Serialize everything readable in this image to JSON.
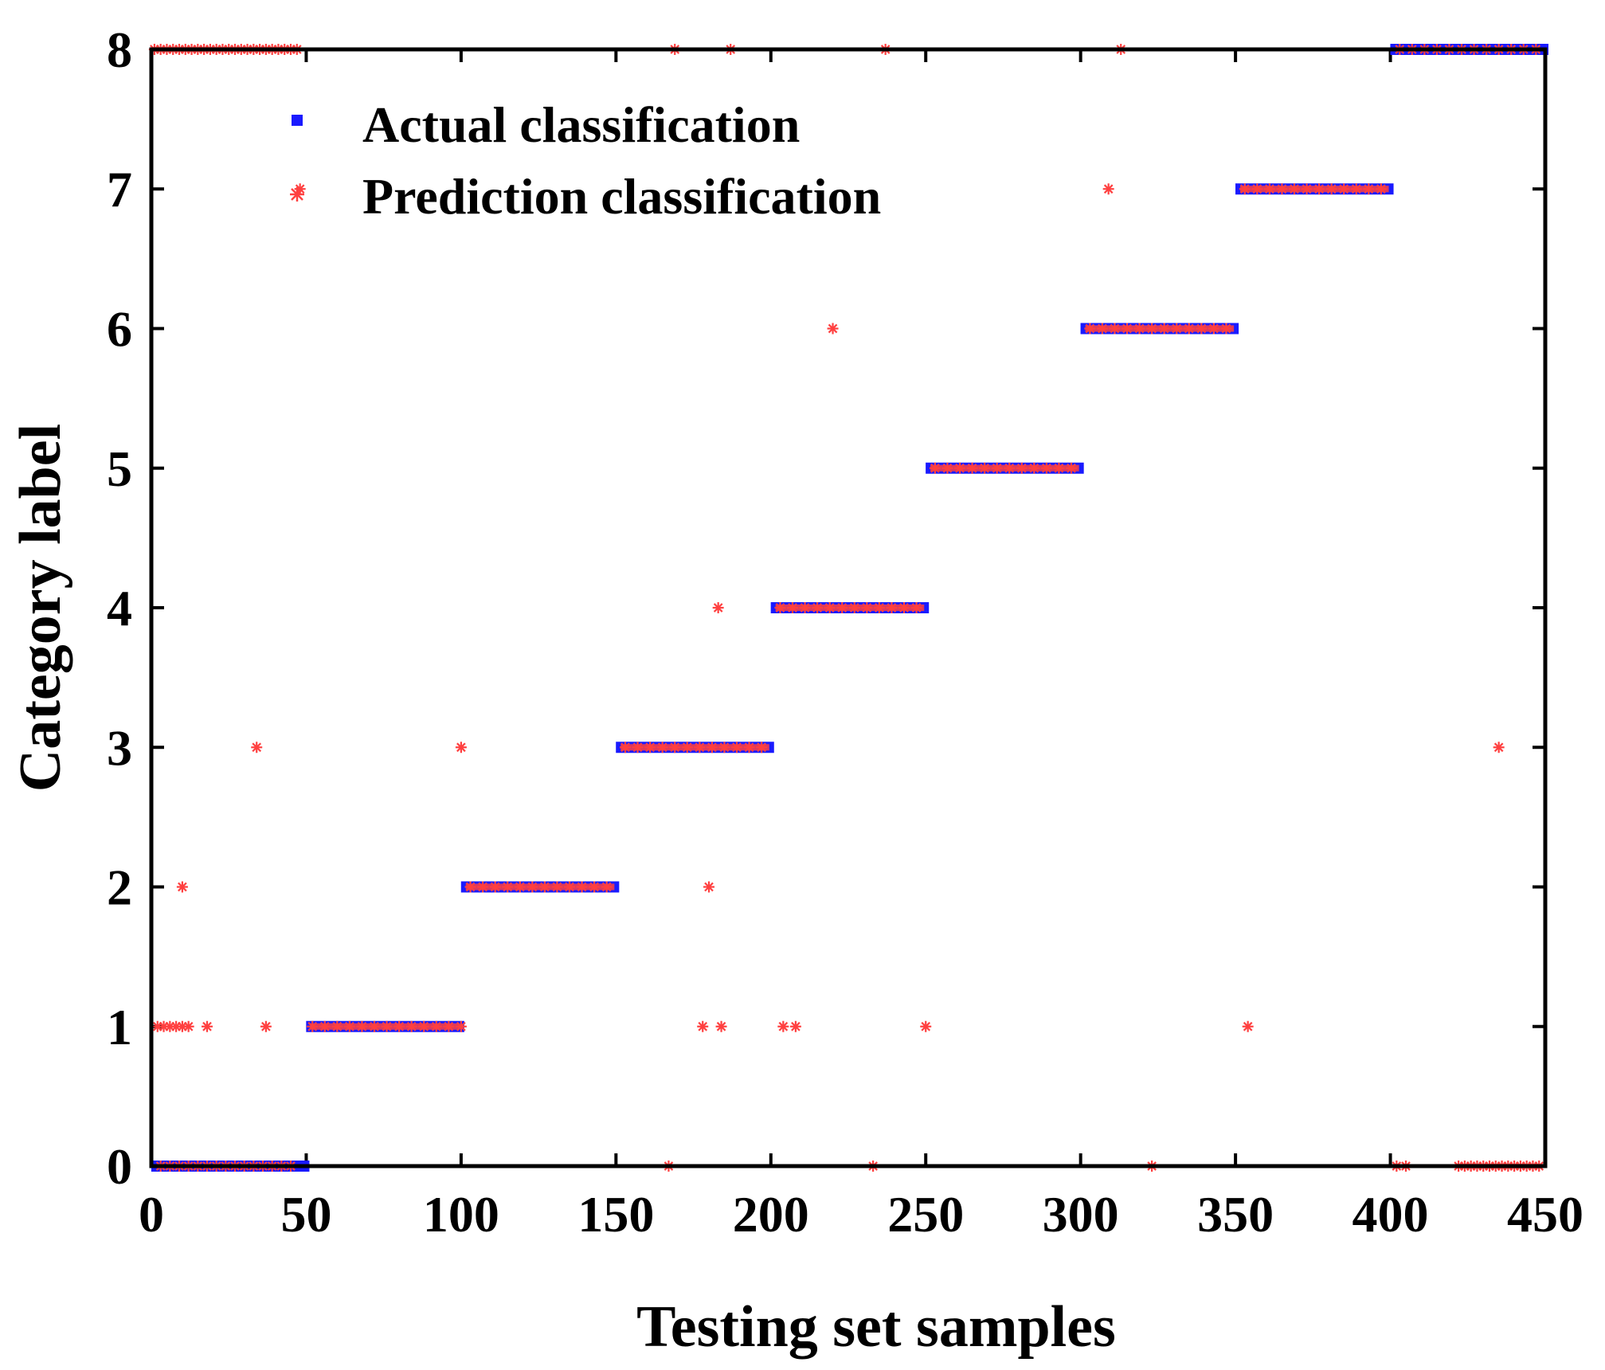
{
  "chart_data": {
    "type": "scatter",
    "xlabel": "Testing set samples",
    "ylabel": "Category label",
    "xlim": [
      0,
      450
    ],
    "ylim": [
      0,
      8
    ],
    "xticks": [
      "0",
      "50",
      "100",
      "150",
      "200",
      "250",
      "300",
      "350",
      "400",
      "450"
    ],
    "yticks": [
      "0",
      "1",
      "2",
      "3",
      "4",
      "5",
      "6",
      "7",
      "8"
    ],
    "grid": false,
    "legend": "top-left",
    "series": [
      {
        "name": "Actual classification",
        "color": "#1a1aff",
        "marker": "square",
        "segments": [
          {
            "x_start": 1,
            "x_end": 50,
            "y": 0
          },
          {
            "x_start": 51,
            "x_end": 100,
            "y": 1
          },
          {
            "x_start": 101,
            "x_end": 150,
            "y": 2
          },
          {
            "x_start": 151,
            "x_end": 200,
            "y": 3
          },
          {
            "x_start": 201,
            "x_end": 250,
            "y": 4
          },
          {
            "x_start": 251,
            "x_end": 300,
            "y": 5
          },
          {
            "x_start": 301,
            "x_end": 350,
            "y": 6
          },
          {
            "x_start": 351,
            "x_end": 400,
            "y": 7
          },
          {
            "x_start": 401,
            "x_end": 450,
            "y": 8
          }
        ]
      },
      {
        "name": "Prediction classification",
        "color": "#ff4040",
        "marker": "asterisk",
        "points": [
          [
            1,
            8
          ],
          [
            3,
            8
          ],
          [
            5,
            8
          ],
          [
            7,
            8
          ],
          [
            9,
            8
          ],
          [
            11,
            8
          ],
          [
            13,
            8
          ],
          [
            15,
            8
          ],
          [
            17,
            8
          ],
          [
            19,
            8
          ],
          [
            21,
            8
          ],
          [
            23,
            8
          ],
          [
            25,
            8
          ],
          [
            27,
            8
          ],
          [
            29,
            8
          ],
          [
            31,
            8
          ],
          [
            33,
            8
          ],
          [
            35,
            8
          ],
          [
            37,
            8
          ],
          [
            39,
            8
          ],
          [
            41,
            8
          ],
          [
            43,
            8
          ],
          [
            45,
            8
          ],
          [
            47,
            8
          ],
          [
            2,
            1
          ],
          [
            4,
            1
          ],
          [
            6,
            1
          ],
          [
            8,
            1
          ],
          [
            10,
            1
          ],
          [
            12,
            1
          ],
          [
            18,
            1
          ],
          [
            37,
            1
          ],
          [
            10,
            2
          ],
          [
            34,
            3
          ],
          [
            48,
            7
          ],
          [
            3,
            0
          ],
          [
            6,
            0
          ],
          [
            9,
            0
          ],
          [
            12,
            0
          ],
          [
            15,
            0
          ],
          [
            18,
            0
          ],
          [
            21,
            0
          ],
          [
            24,
            0
          ],
          [
            27,
            0
          ],
          [
            30,
            0
          ],
          [
            33,
            0
          ],
          [
            36,
            0
          ],
          [
            39,
            0
          ],
          [
            42,
            0
          ],
          [
            45,
            0
          ],
          [
            52,
            1
          ],
          [
            56,
            1
          ],
          [
            60,
            1
          ],
          [
            64,
            1
          ],
          [
            68,
            1
          ],
          [
            72,
            1
          ],
          [
            76,
            1
          ],
          [
            80,
            1
          ],
          [
            84,
            1
          ],
          [
            88,
            1
          ],
          [
            92,
            1
          ],
          [
            96,
            1
          ],
          [
            100,
            1
          ],
          [
            100,
            3
          ],
          [
            103,
            2
          ],
          [
            107,
            2
          ],
          [
            111,
            2
          ],
          [
            115,
            2
          ],
          [
            119,
            2
          ],
          [
            123,
            2
          ],
          [
            127,
            2
          ],
          [
            131,
            2
          ],
          [
            135,
            2
          ],
          [
            139,
            2
          ],
          [
            143,
            2
          ],
          [
            147,
            2
          ],
          [
            153,
            3
          ],
          [
            157,
            3
          ],
          [
            161,
            3
          ],
          [
            165,
            3
          ],
          [
            169,
            3
          ],
          [
            173,
            3
          ],
          [
            177,
            3
          ],
          [
            181,
            3
          ],
          [
            185,
            3
          ],
          [
            189,
            3
          ],
          [
            193,
            3
          ],
          [
            197,
            3
          ],
          [
            167,
            0
          ],
          [
            169,
            8
          ],
          [
            180,
            2
          ],
          [
            178,
            1
          ],
          [
            184,
            1
          ],
          [
            183,
            4
          ],
          [
            187,
            8
          ],
          [
            203,
            4
          ],
          [
            207,
            4
          ],
          [
            211,
            4
          ],
          [
            215,
            4
          ],
          [
            219,
            4
          ],
          [
            223,
            4
          ],
          [
            227,
            4
          ],
          [
            231,
            4
          ],
          [
            235,
            4
          ],
          [
            239,
            4
          ],
          [
            243,
            4
          ],
          [
            247,
            4
          ],
          [
            204,
            1
          ],
          [
            208,
            1
          ],
          [
            220,
            6
          ],
          [
            233,
            0
          ],
          [
            237,
            8
          ],
          [
            250,
            1
          ],
          [
            253,
            5
          ],
          [
            257,
            5
          ],
          [
            261,
            5
          ],
          [
            265,
            5
          ],
          [
            269,
            5
          ],
          [
            273,
            5
          ],
          [
            277,
            5
          ],
          [
            281,
            5
          ],
          [
            285,
            5
          ],
          [
            289,
            5
          ],
          [
            293,
            5
          ],
          [
            297,
            5
          ],
          [
            303,
            6
          ],
          [
            307,
            6
          ],
          [
            311,
            6
          ],
          [
            315,
            6
          ],
          [
            319,
            6
          ],
          [
            323,
            6
          ],
          [
            327,
            6
          ],
          [
            331,
            6
          ],
          [
            335,
            6
          ],
          [
            339,
            6
          ],
          [
            343,
            6
          ],
          [
            347,
            6
          ],
          [
            309,
            7
          ],
          [
            313,
            8
          ],
          [
            323,
            0
          ],
          [
            353,
            7
          ],
          [
            357,
            7
          ],
          [
            361,
            7
          ],
          [
            365,
            7
          ],
          [
            369,
            7
          ],
          [
            373,
            7
          ],
          [
            377,
            7
          ],
          [
            381,
            7
          ],
          [
            385,
            7
          ],
          [
            389,
            7
          ],
          [
            393,
            7
          ],
          [
            397,
            7
          ],
          [
            354,
            1
          ],
          [
            403,
            8
          ],
          [
            407,
            8
          ],
          [
            411,
            8
          ],
          [
            415,
            8
          ],
          [
            419,
            8
          ],
          [
            423,
            8
          ],
          [
            427,
            8
          ],
          [
            431,
            8
          ],
          [
            435,
            8
          ],
          [
            439,
            8
          ],
          [
            443,
            8
          ],
          [
            447,
            8
          ],
          [
            402,
            0
          ],
          [
            405,
            0
          ],
          [
            422,
            0
          ],
          [
            424,
            0
          ],
          [
            426,
            0
          ],
          [
            428,
            0
          ],
          [
            430,
            0
          ],
          [
            432,
            0
          ],
          [
            434,
            0
          ],
          [
            436,
            0
          ],
          [
            438,
            0
          ],
          [
            440,
            0
          ],
          [
            442,
            0
          ],
          [
            444,
            0
          ],
          [
            446,
            0
          ],
          [
            448,
            0
          ],
          [
            435,
            3
          ]
        ]
      }
    ]
  }
}
